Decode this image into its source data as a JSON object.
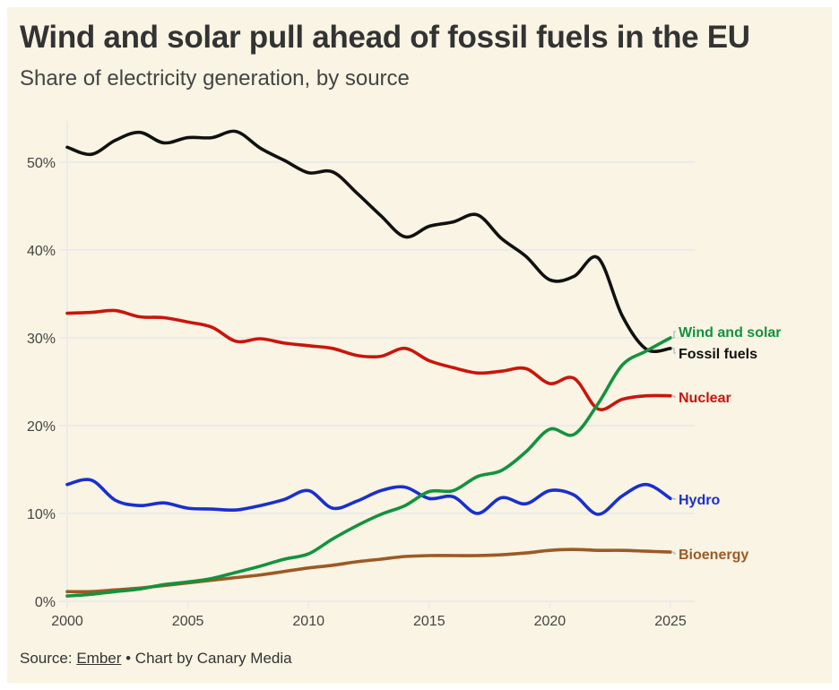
{
  "header": {
    "title": "Wind and solar pull ahead of fossil fuels in the EU",
    "subtitle": "Share of electricity generation, by source"
  },
  "footer": {
    "source_prefix": "Source: ",
    "source_link": "Ember",
    "source_suffix": " • Chart by Canary Media"
  },
  "colors": {
    "background": "#f9f4e3",
    "grid": "#ebebeb"
  },
  "chart_data": {
    "type": "line",
    "title": "Wind and solar pull ahead of fossil fuels in the EU",
    "subtitle": "Share of electricity generation, by source",
    "xlabel": "",
    "ylabel": "",
    "x": [
      2000,
      2001,
      2002,
      2003,
      2004,
      2005,
      2006,
      2007,
      2008,
      2009,
      2010,
      2011,
      2012,
      2013,
      2014,
      2015,
      2016,
      2017,
      2018,
      2019,
      2020,
      2021,
      2022,
      2023,
      2024,
      2025
    ],
    "xlim": [
      2000,
      2025
    ],
    "ylim": [
      0,
      55
    ],
    "xticks": [
      2000,
      2005,
      2010,
      2015,
      2020,
      2025
    ],
    "xtick_labels": [
      "2000",
      "2005",
      "2010",
      "2015",
      "2020",
      "2025"
    ],
    "yticks": [
      0,
      10,
      20,
      30,
      40,
      50
    ],
    "ytick_labels": [
      "0%",
      "10%",
      "20%",
      "30%",
      "40%",
      "50%"
    ],
    "grid": true,
    "legend": "direct labels at right end of lines",
    "series": [
      {
        "name": "Fossil fuels",
        "color": "#111111",
        "values": [
          51.7,
          50.9,
          52.5,
          53.4,
          52.2,
          52.8,
          52.8,
          53.5,
          51.6,
          50.2,
          48.8,
          48.9,
          46.5,
          43.9,
          41.5,
          42.7,
          43.2,
          44.0,
          41.3,
          39.3,
          36.6,
          37.0,
          39.1,
          32.5,
          28.7,
          28.8
        ]
      },
      {
        "name": "Wind and solar",
        "color": "#13923e",
        "values": [
          0.6,
          0.8,
          1.1,
          1.4,
          1.9,
          2.2,
          2.6,
          3.3,
          4.0,
          4.8,
          5.4,
          7.1,
          8.6,
          9.9,
          10.9,
          12.5,
          12.6,
          14.2,
          14.9,
          17.0,
          19.6,
          19.0,
          22.5,
          26.9,
          28.5,
          30.0
        ]
      },
      {
        "name": "Nuclear",
        "color": "#c8160c",
        "values": [
          32.8,
          32.9,
          33.1,
          32.4,
          32.3,
          31.8,
          31.2,
          29.6,
          29.9,
          29.4,
          29.1,
          28.8,
          28.0,
          27.9,
          28.8,
          27.4,
          26.6,
          26.0,
          26.2,
          26.5,
          24.8,
          25.4,
          21.9,
          23.0,
          23.4,
          23.4
        ]
      },
      {
        "name": "Hydro",
        "color": "#1a2fce",
        "values": [
          13.3,
          13.8,
          11.5,
          10.9,
          11.2,
          10.6,
          10.5,
          10.4,
          10.9,
          11.6,
          12.6,
          10.6,
          11.4,
          12.6,
          13.0,
          11.7,
          11.9,
          10.0,
          11.8,
          11.1,
          12.6,
          12.1,
          9.9,
          12.0,
          13.3,
          11.7
        ]
      },
      {
        "name": "Bioenergy",
        "color": "#9c5a26",
        "values": [
          1.1,
          1.1,
          1.3,
          1.5,
          1.8,
          2.1,
          2.4,
          2.7,
          3.0,
          3.4,
          3.8,
          4.1,
          4.5,
          4.8,
          5.1,
          5.2,
          5.2,
          5.2,
          5.3,
          5.5,
          5.8,
          5.9,
          5.8,
          5.8,
          5.7,
          5.6
        ]
      }
    ],
    "end_labels": [
      "Wind and solar",
      "Fossil fuels",
      "Nuclear",
      "Hydro",
      "Bioenergy"
    ]
  }
}
